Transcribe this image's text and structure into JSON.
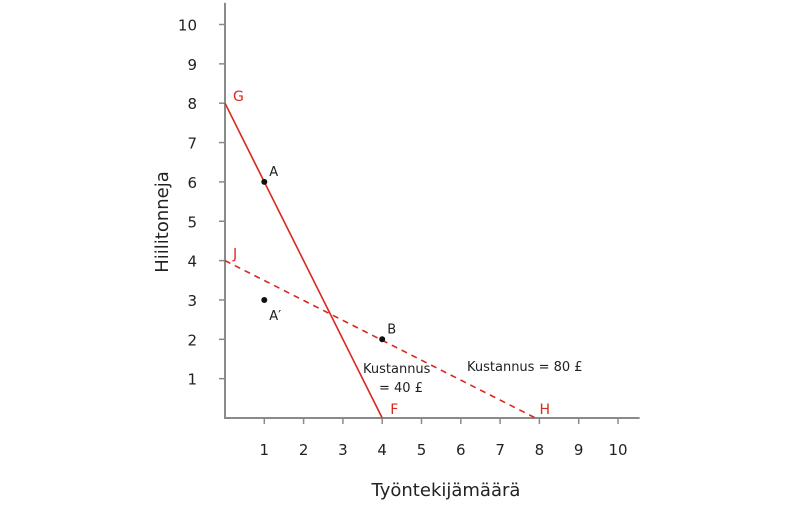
{
  "chart_data": {
    "type": "line",
    "xlabel": "Työntekijämäärä",
    "ylabel": "Hiilitonneja",
    "xlim": [
      0,
      10.55
    ],
    "ylim": [
      0,
      10.55
    ],
    "xticks": [
      1,
      2,
      3,
      4,
      5,
      6,
      7,
      8,
      9,
      10
    ],
    "yticks": [
      1,
      2,
      3,
      4,
      5,
      6,
      7,
      8,
      9,
      10
    ],
    "grid": false,
    "colors": {
      "lines": "#d9281e",
      "axis": "#8a8a8a",
      "points": "#111111"
    },
    "series": [
      {
        "id": "solid",
        "style": "solid",
        "x": [
          0,
          4
        ],
        "y": [
          8,
          0
        ],
        "start_label": "G",
        "end_label": "F",
        "annotation": [
          "Kustannus",
          "= 40 £"
        ]
      },
      {
        "id": "dashed",
        "style": "dashed",
        "x": [
          0,
          7.9
        ],
        "y": [
          4,
          0
        ],
        "start_label": "J",
        "end_label": "H",
        "annotation": [
          "Kustannus = 80 £"
        ]
      }
    ],
    "points": [
      {
        "label": "A",
        "x": 1,
        "y": 6
      },
      {
        "label": "A′",
        "x": 1,
        "y": 3
      },
      {
        "label": "B",
        "x": 4,
        "y": 2
      }
    ]
  }
}
